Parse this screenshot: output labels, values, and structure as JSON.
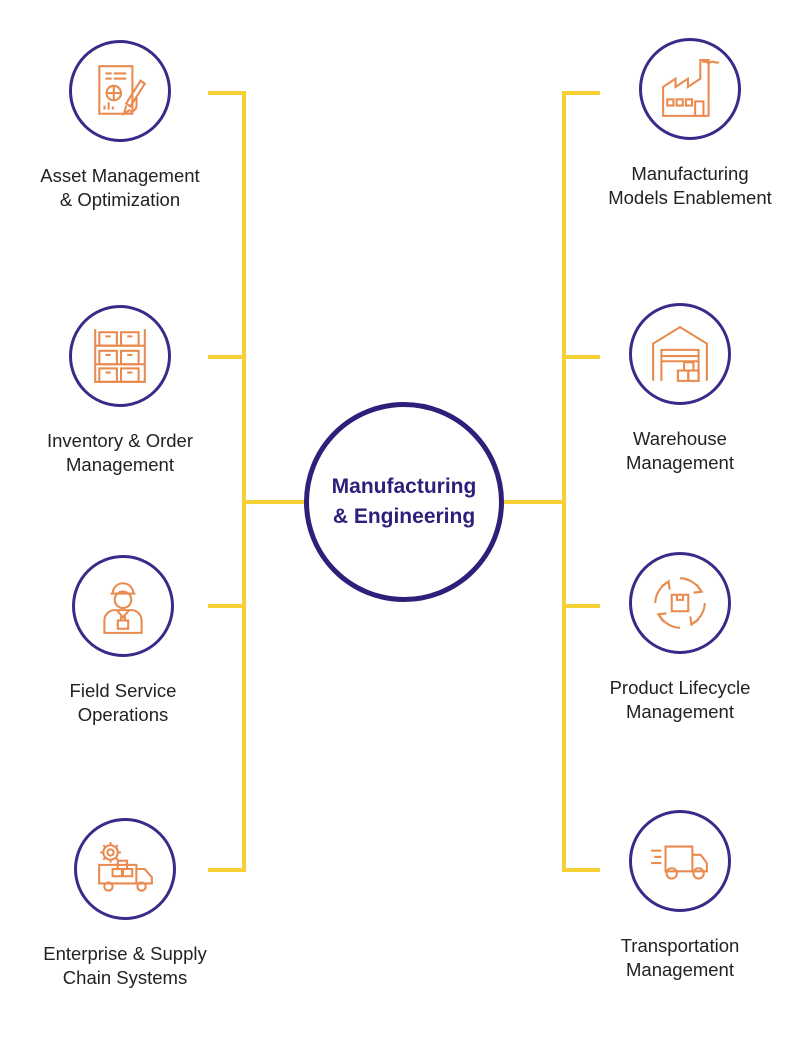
{
  "colors": {
    "connector": "#f5cf34",
    "ring": "#3a2a8a",
    "hub": "#2d1f7a",
    "icon": "#e98a4f",
    "text": "#222222"
  },
  "hub": {
    "line1": "Manufacturing",
    "line2": "& Engineering"
  },
  "nodes": {
    "asset": {
      "line1": "Asset Management",
      "line2": "& Optimization",
      "icon": "asset-management-icon"
    },
    "inventory": {
      "line1": "Inventory & Order",
      "line2": "Management",
      "icon": "inventory-shelves-icon"
    },
    "field": {
      "line1": "Field Service",
      "line2": "Operations",
      "icon": "field-technician-icon"
    },
    "enterprise": {
      "line1": "Enterprise & Supply",
      "line2": "Chain Systems",
      "icon": "supply-truck-gear-icon"
    },
    "manufacturing": {
      "line1": "Manufacturing",
      "line2": "Models Enablement",
      "icon": "factory-icon"
    },
    "warehouse": {
      "line1": "Warehouse",
      "line2": "Management",
      "icon": "warehouse-icon"
    },
    "lifecycle": {
      "line1": "Product Lifecycle",
      "line2": "Management",
      "icon": "lifecycle-cycle-icon"
    },
    "transport": {
      "line1": "Transportation",
      "line2": "Management",
      "icon": "delivery-truck-icon"
    }
  }
}
